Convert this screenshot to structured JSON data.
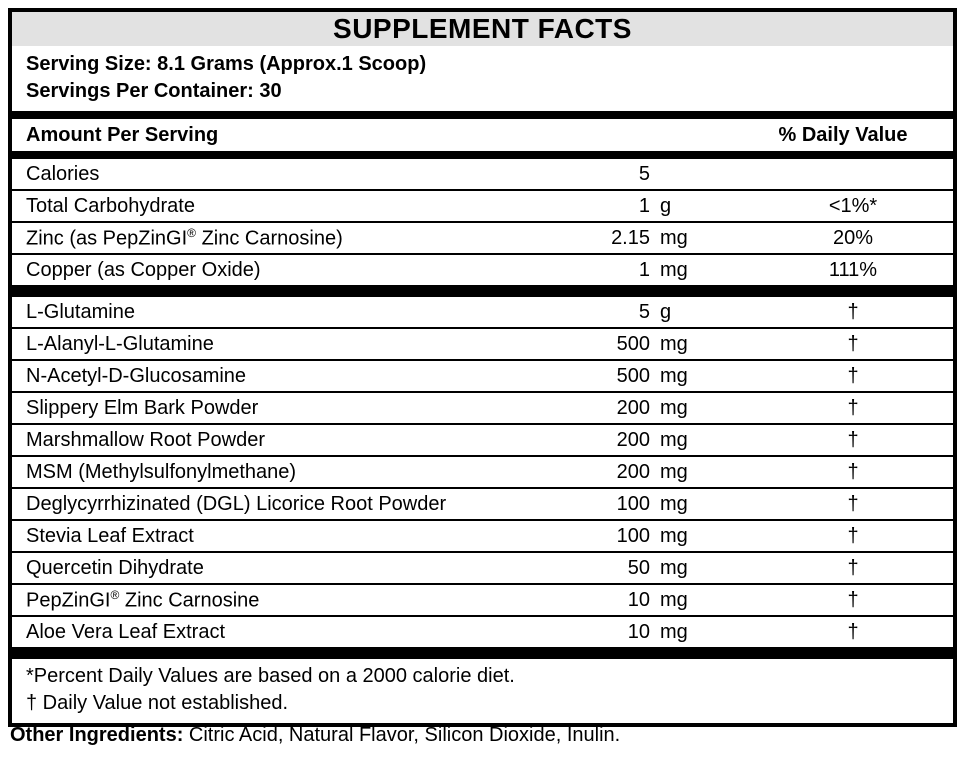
{
  "title": "SUPPLEMENT FACTS",
  "serving": {
    "size_line": "Serving Size: 8.1 Grams (Approx.1 Scoop)",
    "servings_line": "Servings Per Container: 30"
  },
  "table": {
    "header": {
      "amount_label": "Amount Per Serving",
      "dv_label": "% Daily Value"
    },
    "nutrient_rows": [
      {
        "name": "Calories",
        "amount": "5",
        "unit": "",
        "dv": ""
      },
      {
        "name": "Total Carbohydrate",
        "amount": "1",
        "unit": "g",
        "dv": "<1%*"
      },
      {
        "name": "Zinc (as PepZinGI® Zinc Carnosine)",
        "amount": "2.15",
        "unit": "mg",
        "dv": "20%"
      },
      {
        "name": "Copper (as Copper Oxide)",
        "amount": "1",
        "unit": "mg",
        "dv": "111%"
      }
    ],
    "ingredient_rows": [
      {
        "name": "L-Glutamine",
        "amount": "5",
        "unit": "g",
        "dv": "†"
      },
      {
        "name": "L-Alanyl-L-Glutamine",
        "amount": "500",
        "unit": "mg",
        "dv": "†"
      },
      {
        "name": "N-Acetyl-D-Glucosamine",
        "amount": "500",
        "unit": "mg",
        "dv": "†"
      },
      {
        "name": "Slippery Elm Bark Powder",
        "amount": "200",
        "unit": "mg",
        "dv": "†"
      },
      {
        "name": "Marshmallow Root Powder",
        "amount": "200",
        "unit": "mg",
        "dv": "†"
      },
      {
        "name": "MSM (Methylsulfonylmethane)",
        "amount": "200",
        "unit": "mg",
        "dv": "†"
      },
      {
        "name": "Deglycyrrhizinated (DGL) Licorice Root Powder",
        "amount": "100",
        "unit": "mg",
        "dv": "†"
      },
      {
        "name": "Stevia Leaf Extract",
        "amount": "100",
        "unit": "mg",
        "dv": "†"
      },
      {
        "name": "Quercetin Dihydrate",
        "amount": "50",
        "unit": "mg",
        "dv": "†"
      },
      {
        "name": "PepZinGI® Zinc Carnosine",
        "amount": "10",
        "unit": "mg",
        "dv": "†"
      },
      {
        "name": "Aloe Vera Leaf Extract",
        "amount": "10",
        "unit": "mg",
        "dv": "†"
      }
    ]
  },
  "footnotes": {
    "percent_note": "*Percent Daily Values are based on a 2000 calorie diet.",
    "dagger_note": "† Daily Value not established."
  },
  "other_ingredients": {
    "label": "Other Ingredients:",
    "text": " Citric Acid, Natural Flavor, Silicon Dioxide, Inulin."
  },
  "colors": {
    "title_bg": "#e2e2e2",
    "border": "#000000",
    "text": "#000000"
  }
}
